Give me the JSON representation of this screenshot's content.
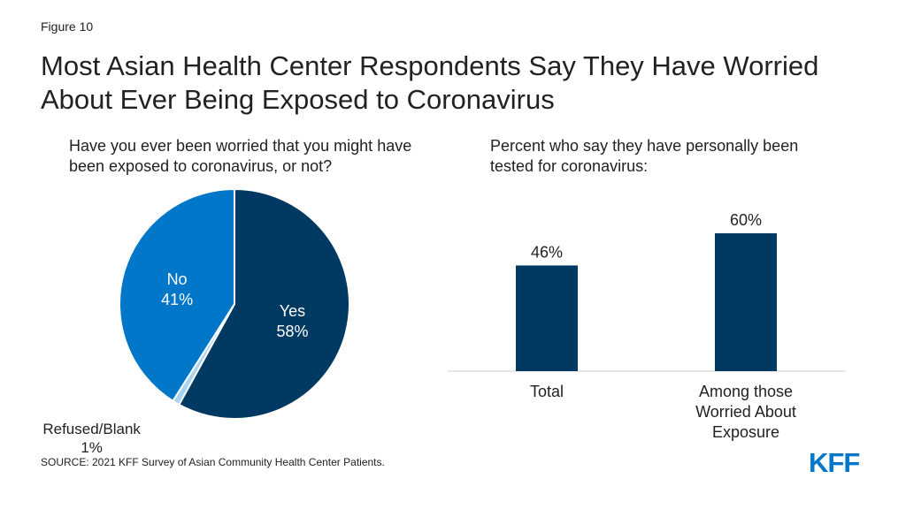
{
  "figure_label": "Figure 10",
  "title": "Most Asian Health Center Respondents Say They Have Worried About Ever Being Exposed to Coronavirus",
  "source": "SOURCE: 2021 KFF Survey of Asian Community Health Center Patients.",
  "logo_text": "KFF",
  "chart_data": [
    {
      "type": "pie",
      "title": "Have you ever been worried that you might have been exposed to coronavirus, or not?",
      "slices": [
        {
          "label": "Yes",
          "value": 58,
          "value_label": "58%",
          "color": "#003a63",
          "text_color": "#ffffff"
        },
        {
          "label": "Refused/Blank",
          "value": 1,
          "value_label": "1%",
          "color": "#a6d4f2",
          "text_color": "#222222",
          "label_position": "outside"
        },
        {
          "label": "No",
          "value": 41,
          "value_label": "41%",
          "color": "#0077c8",
          "text_color": "#ffffff"
        }
      ]
    },
    {
      "type": "bar",
      "title": "Percent who say they have personally been tested for coronavirus:",
      "categories": [
        "Total",
        "Among those Worried About Exposure"
      ],
      "category_lines": [
        [
          "Total"
        ],
        [
          "Among those",
          "Worried About",
          "Exposure"
        ]
      ],
      "values": [
        46,
        60
      ],
      "value_labels": [
        "46%",
        "60%"
      ],
      "ylim": [
        0,
        100
      ],
      "bar_color": "#003a63",
      "grid": false
    }
  ]
}
